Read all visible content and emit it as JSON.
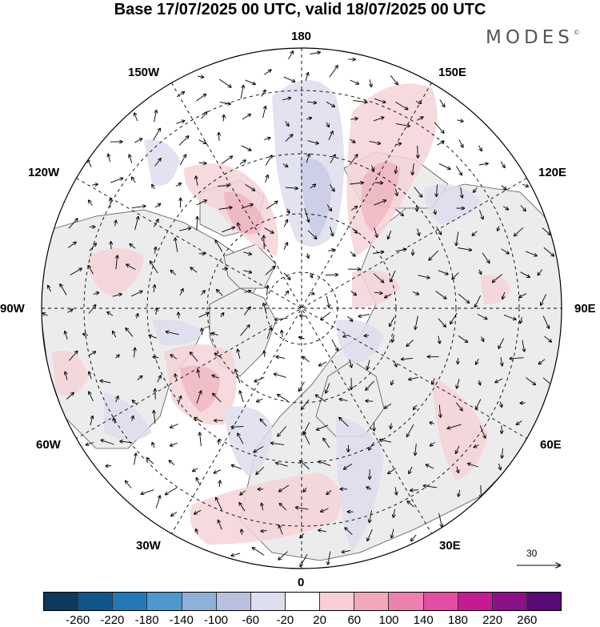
{
  "title": "Base 17/07/2025 00 UTC, valid 18/07/2025 00 UTC",
  "logo": "MODES",
  "logo_mark": "©",
  "map_labels": {
    "top": "180",
    "bottom": "0",
    "left": "90W",
    "right": "90E",
    "upper_left": "150W",
    "upper_right": "150E",
    "mid_upper_left": "120W",
    "mid_upper_right": "120E",
    "mid_lower_left": "60W",
    "mid_lower_right": "60E",
    "lower_left": "30W",
    "lower_right": "30E"
  },
  "wind_reference": {
    "value": "30"
  },
  "colorbar": {
    "ticks": [
      "-260",
      "-220",
      "-180",
      "-140",
      "-100",
      "-60",
      "-20",
      "20",
      "60",
      "100",
      "140",
      "180",
      "220",
      "260"
    ],
    "colors": [
      "#0c3a5c",
      "#10568c",
      "#2179b8",
      "#4d98ce",
      "#8eb1d9",
      "#b8c1e0",
      "#ddddf0",
      "#ffffff",
      "#f8d0d4",
      "#f2a8b8",
      "#ec80ae",
      "#e54ca4",
      "#c51a92",
      "#8e0f8a",
      "#5a0a78"
    ]
  },
  "colors": {
    "land": "#ececec",
    "ocean": "#ffffff",
    "positive_light": "#f6d4d8",
    "positive_mid": "#efb2bd",
    "negative_light": "#deddee",
    "negative_mid": "#c3c8e4"
  }
}
